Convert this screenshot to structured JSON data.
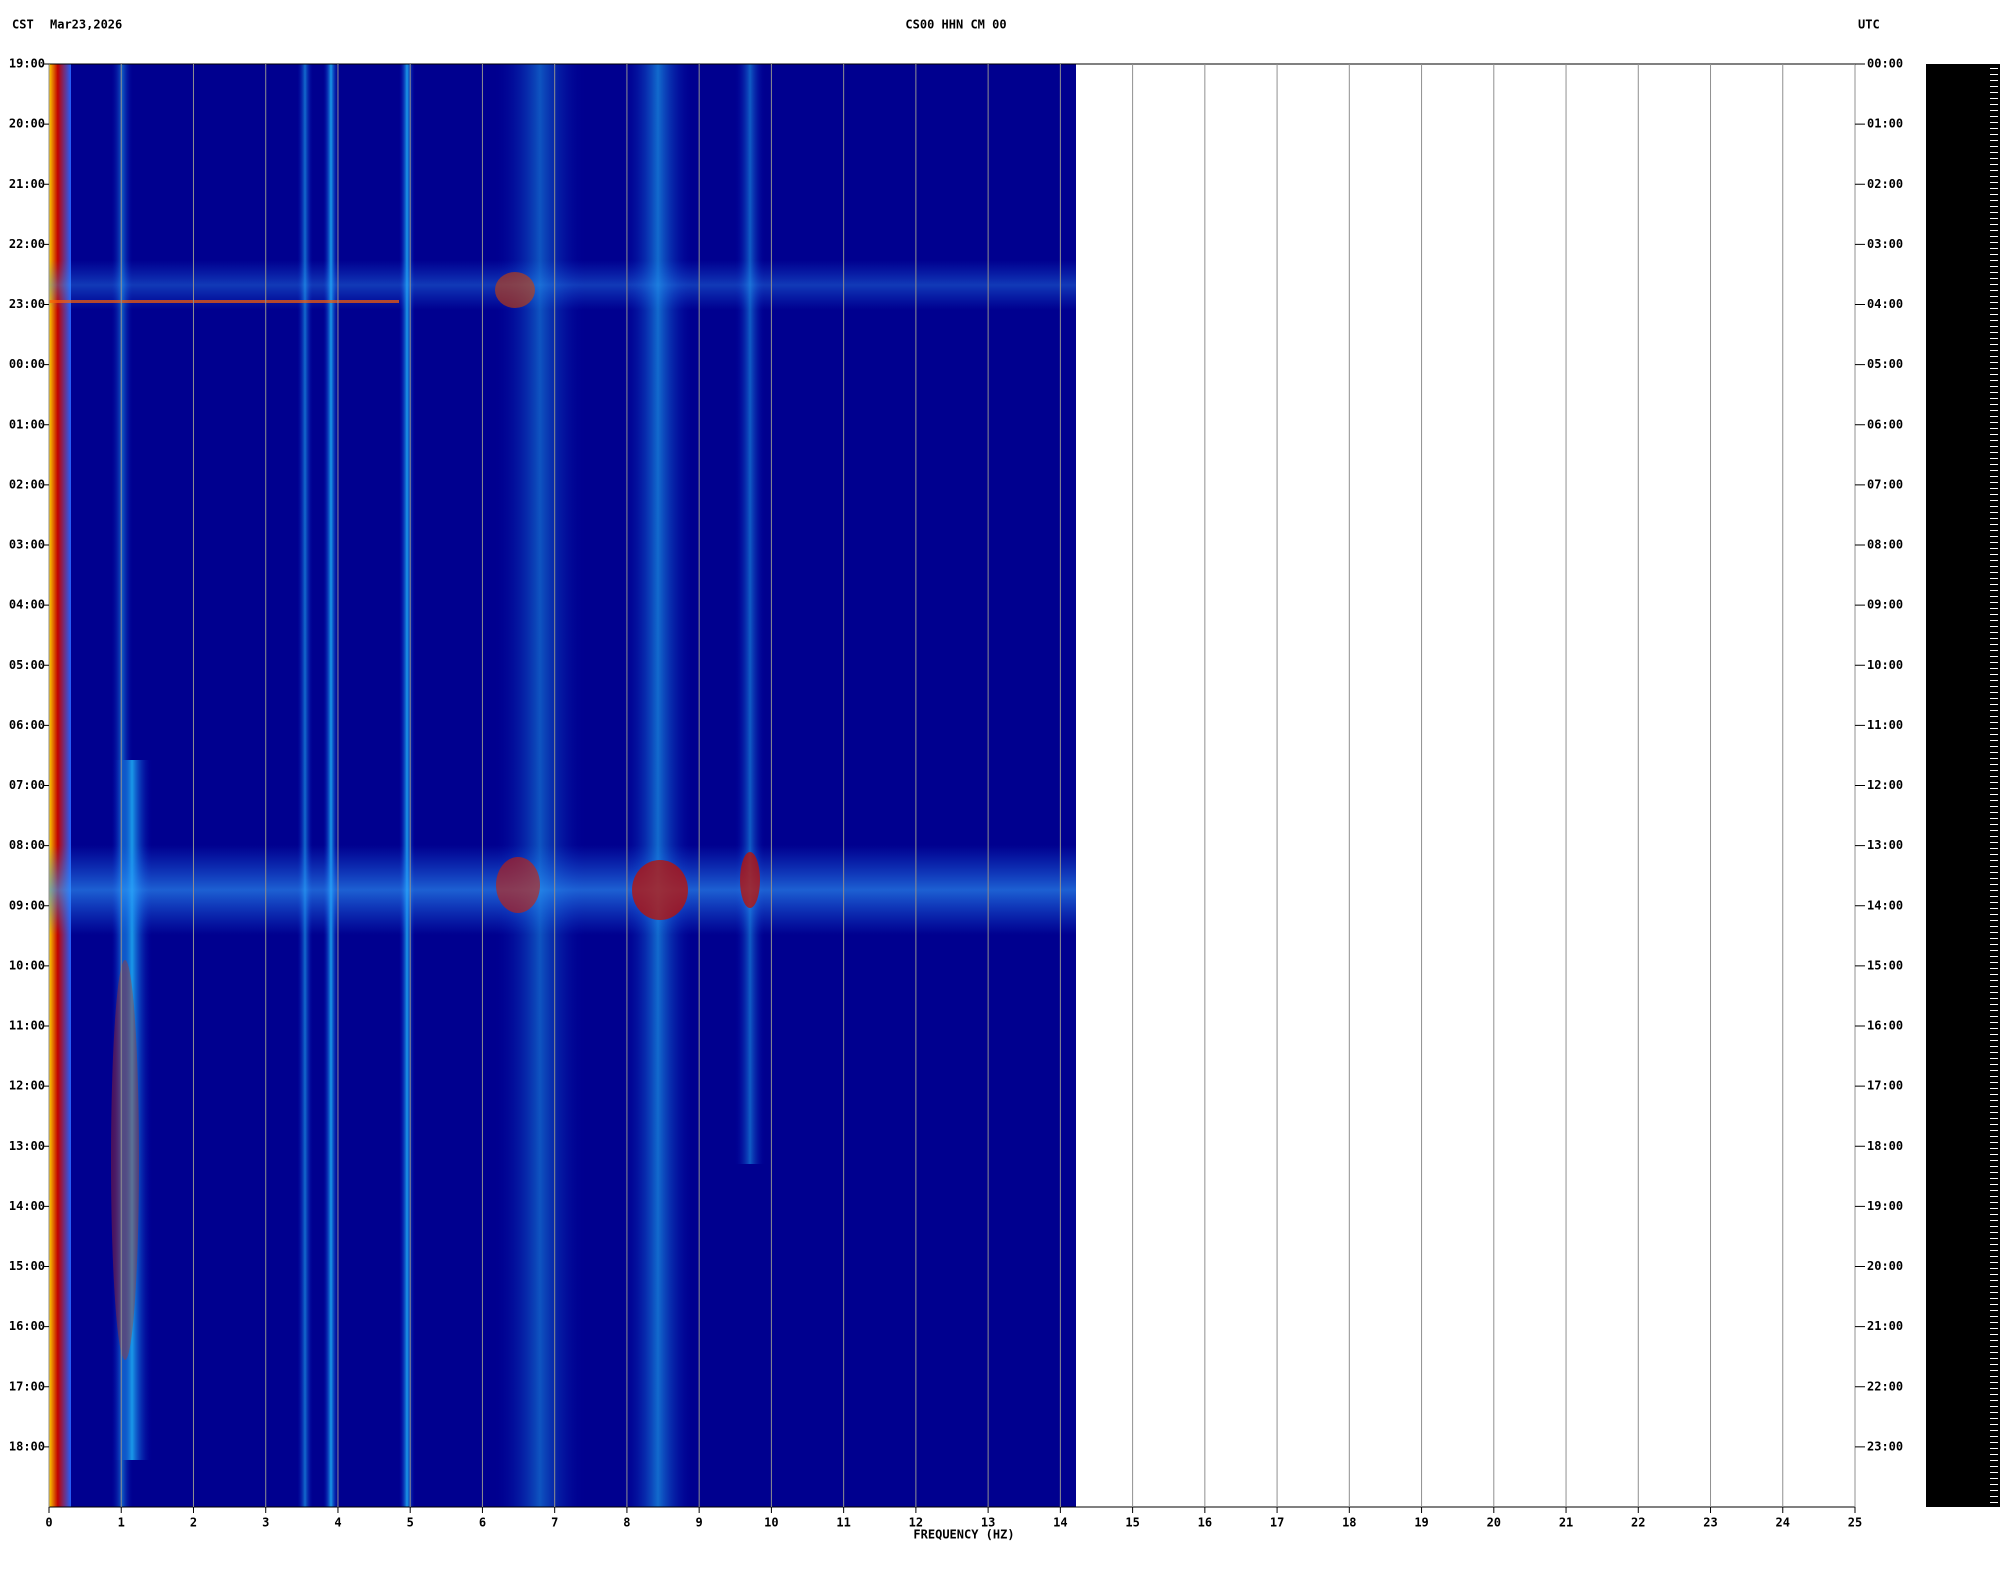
{
  "chart_data": {
    "type": "spectrogram",
    "left_label": "CST",
    "date": "Mar23,2026",
    "title": "CS00 HHN CM 00",
    "right_label": "UTC",
    "xlabel": "FREQUENCY (HZ)",
    "xlim": [
      0,
      25
    ],
    "xticks": [
      0,
      1,
      2,
      3,
      4,
      5,
      6,
      7,
      8,
      9,
      10,
      11,
      12,
      13,
      14,
      15,
      16,
      17,
      18,
      19,
      20,
      21,
      22,
      23,
      24,
      25
    ],
    "ylim": [
      0,
      24
    ],
    "yticks": [
      {
        "value": 0,
        "label": "19:00"
      },
      {
        "value": 1,
        "label": "20:00"
      },
      {
        "value": 2,
        "label": "21:00"
      },
      {
        "value": 3,
        "label": "22:00"
      },
      {
        "value": 4,
        "label": "23:00"
      },
      {
        "value": 5,
        "label": "00:00"
      },
      {
        "value": 6,
        "label": "01:00"
      },
      {
        "value": 7,
        "label": "02:00"
      },
      {
        "value": 8,
        "label": "03:00"
      },
      {
        "value": 9,
        "label": "04:00"
      },
      {
        "value": 10,
        "label": "05:00"
      },
      {
        "value": 11,
        "label": "06:00"
      },
      {
        "value": 12,
        "label": "07:00"
      },
      {
        "value": 13,
        "label": "08:00"
      },
      {
        "value": 14,
        "label": "09:00"
      },
      {
        "value": 15,
        "label": "10:00"
      },
      {
        "value": 16,
        "label": "11:00"
      },
      {
        "value": 17,
        "label": "12:00"
      },
      {
        "value": 18,
        "label": "13:00"
      },
      {
        "value": 19,
        "label": "14:00"
      },
      {
        "value": 20,
        "label": "15:00"
      },
      {
        "value": 21,
        "label": "16:00"
      },
      {
        "value": 22,
        "label": "17:00"
      },
      {
        "value": 23,
        "label": "18:00"
      }
    ],
    "y2lim": [
      0,
      24
    ],
    "y2ticks": [
      {
        "value": 0,
        "label": "00:00"
      },
      {
        "value": 1,
        "label": "01:00"
      },
      {
        "value": 2,
        "label": "02:00"
      },
      {
        "value": 3,
        "label": "03:00"
      },
      {
        "value": 4,
        "label": "04:00"
      },
      {
        "value": 5,
        "label": "05:00"
      },
      {
        "value": 6,
        "label": "06:00"
      },
      {
        "value": 7,
        "label": "07:00"
      },
      {
        "value": 8,
        "label": "08:00"
      },
      {
        "value": 9,
        "label": "09:00"
      },
      {
        "value": 10,
        "label": "10:00"
      },
      {
        "value": 11,
        "label": "11:00"
      },
      {
        "value": 12,
        "label": "12:00"
      },
      {
        "value": 13,
        "label": "13:00"
      },
      {
        "value": 14,
        "label": "14:00"
      },
      {
        "value": 15,
        "label": "15:00"
      },
      {
        "value": 16,
        "label": "16:00"
      },
      {
        "value": 17,
        "label": "17:00"
      },
      {
        "value": 18,
        "label": "18:00"
      },
      {
        "value": 19,
        "label": "19:00"
      },
      {
        "value": 20,
        "label": "20:00"
      },
      {
        "value": 21,
        "label": "21:00"
      },
      {
        "value": 22,
        "label": "22:00"
      },
      {
        "value": 23,
        "label": "23:00"
      }
    ],
    "grid": true
  }
}
